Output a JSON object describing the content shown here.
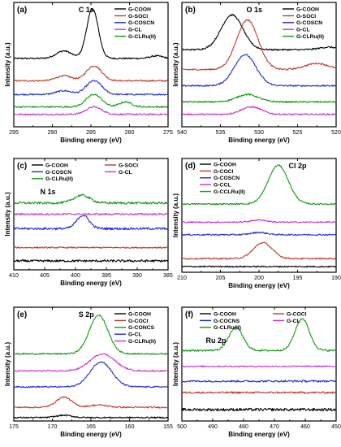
{
  "chart_data": [
    {
      "type": "line",
      "panel_label": "(a)",
      "title": "C 1s",
      "xlabel": "Binding energy (eV)",
      "ylabel": "Intensity (a.u.)",
      "xlim": [
        295,
        275
      ],
      "x_ticks": [
        "295",
        "290",
        "285",
        "280",
        "275"
      ],
      "legend": [
        {
          "name": "G-COOH",
          "color": "#000000"
        },
        {
          "name": "G-SOCl",
          "color": "#c0392b"
        },
        {
          "name": "G-COSCN",
          "color": "#1f2bd6"
        },
        {
          "name": "G-CL",
          "color": "#cc33cc"
        },
        {
          "name": "G-CLRu(II)",
          "color": "#119911"
        }
      ],
      "series": [
        {
          "name": "G-COOH",
          "color": "#000000",
          "baseline": 0.55,
          "noise": 0.006,
          "peaks": [
            [
              284.8,
              0.4,
              0.75
            ],
            [
              288.5,
              0.06,
              1.0
            ],
            [
              276.5,
              0.02,
              0.8
            ]
          ]
        },
        {
          "name": "G-SOCl",
          "color": "#c0392b",
          "baseline": 0.37,
          "noise": 0.006,
          "peaks": [
            [
              284.6,
              0.12,
              1.0
            ],
            [
              288.5,
              0.04,
              1.0
            ]
          ]
        },
        {
          "name": "G-COSCN",
          "color": "#1f2bd6",
          "baseline": 0.26,
          "noise": 0.006,
          "peaks": [
            [
              284.6,
              0.11,
              1.0
            ],
            [
              288.5,
              0.03,
              1.0
            ]
          ]
        },
        {
          "name": "G-CL",
          "color": "#cc33cc",
          "baseline": 0.1,
          "noise": 0.006,
          "peaks": [
            [
              284.6,
              0.06,
              1.0
            ]
          ]
        },
        {
          "name": "G-CLRu(II)",
          "color": "#119911",
          "baseline": 0.16,
          "noise": 0.006,
          "peaks": [
            [
              284.6,
              0.1,
              1.0
            ],
            [
              280.5,
              0.04,
              0.8
            ]
          ]
        }
      ]
    },
    {
      "type": "line",
      "panel_label": "(b)",
      "title": "O 1s",
      "xlabel": "Binding energy (eV)",
      "ylabel": "Intensity (a.u.)",
      "xlim": [
        540,
        520
      ],
      "x_ticks": [
        "540",
        "535",
        "530",
        "525",
        "520"
      ],
      "legend": [
        {
          "name": "G-COOH",
          "color": "#000000"
        },
        {
          "name": "G-SOCl",
          "color": "#c0392b"
        },
        {
          "name": "G-COSCN",
          "color": "#1f2bd6"
        },
        {
          "name": "G-CL",
          "color": "#cc33cc"
        },
        {
          "name": "G-CLRu(II)",
          "color": "#119911"
        }
      ],
      "series": [
        {
          "name": "G-COOH",
          "color": "#000000",
          "baseline": 0.62,
          "noise": 0.006,
          "peaks": [
            [
              533.5,
              0.28,
              1.4
            ],
            [
              521.0,
              0.02,
              1.2
            ]
          ]
        },
        {
          "name": "G-SOCl",
          "color": "#c0392b",
          "baseline": 0.46,
          "noise": 0.006,
          "peaks": [
            [
              531.5,
              0.4,
              1.4
            ],
            [
              522.5,
              0.05,
              1.5
            ]
          ]
        },
        {
          "name": "G-COSCN",
          "color": "#1f2bd6",
          "baseline": 0.33,
          "noise": 0.006,
          "peaks": [
            [
              531.8,
              0.25,
              1.4
            ]
          ]
        },
        {
          "name": "G-CL",
          "color": "#cc33cc",
          "baseline": 0.1,
          "noise": 0.006,
          "peaks": [
            [
              531.0,
              0.06,
              1.3
            ]
          ]
        },
        {
          "name": "G-CLRu(II)",
          "color": "#119911",
          "baseline": 0.2,
          "noise": 0.006,
          "peaks": [
            [
              531.5,
              0.06,
              1.4
            ]
          ]
        }
      ]
    },
    {
      "type": "line",
      "panel_label": "(c)",
      "title": "N 1s",
      "xlabel": "Binding energy (eV)",
      "ylabel": "Intensity (a.u.)",
      "xlim": [
        410,
        385
      ],
      "x_ticks": [
        "410",
        "405",
        "400",
        "395",
        "390",
        "385"
      ],
      "legend": [
        {
          "name": "G-COOH",
          "color": "#000000"
        },
        {
          "name": "G-SOCl",
          "color": "#c0392b"
        },
        {
          "name": "G-COSCN",
          "color": "#1f2bd6"
        },
        {
          "name": "G-CL",
          "color": "#cc33cc"
        },
        {
          "name": "G-CLRu(II)",
          "color": "#119911"
        }
      ],
      "series": [
        {
          "name": "G-COOH",
          "color": "#000000",
          "baseline": 0.08,
          "noise": 0.01,
          "peaks": []
        },
        {
          "name": "G-SOCl",
          "color": "#c0392b",
          "baseline": 0.2,
          "noise": 0.006,
          "peaks": []
        },
        {
          "name": "G-COSCN",
          "color": "#1f2bd6",
          "baseline": 0.37,
          "noise": 0.01,
          "peaks": [
            [
              398.8,
              0.12,
              1.0
            ]
          ]
        },
        {
          "name": "G-CL",
          "color": "#cc33cc",
          "baseline": 0.5,
          "noise": 0.008,
          "peaks": []
        },
        {
          "name": "G-CLRu(II)",
          "color": "#119911",
          "baseline": 0.6,
          "noise": 0.01,
          "peaks": [
            [
              399.0,
              0.07,
              1.3
            ]
          ]
        }
      ]
    },
    {
      "type": "line",
      "panel_label": "(d)",
      "title": "Cl 2p",
      "xlabel": "Binding energy (eV)",
      "ylabel": "Intensity (a.u.)",
      "xlim": [
        210,
        190
      ],
      "x_ticks": [
        "210",
        "205",
        "200",
        "195",
        "190"
      ],
      "legend": [
        {
          "name": "G-COOH",
          "color": "#000000"
        },
        {
          "name": "G-COCl",
          "color": "#c0392b"
        },
        {
          "name": "G-COSCN",
          "color": "#1f2bd6"
        },
        {
          "name": "G-CCL",
          "color": "#cc33cc"
        },
        {
          "name": "G-CCLRu(II)",
          "color": "#119911"
        }
      ],
      "series": [
        {
          "name": "G-COOH",
          "color": "#000000",
          "baseline": 0.05,
          "noise": 0.006,
          "peaks": []
        },
        {
          "name": "G-COCl",
          "color": "#c0392b",
          "baseline": 0.12,
          "noise": 0.006,
          "peaks": [
            [
              199.5,
              0.14,
              1.2
            ]
          ]
        },
        {
          "name": "G-COSCN",
          "color": "#1f2bd6",
          "baseline": 0.33,
          "noise": 0.006,
          "peaks": [
            [
              200.0,
              0.02,
              1.0
            ]
          ]
        },
        {
          "name": "G-CCL",
          "color": "#cc33cc",
          "baseline": 0.44,
          "noise": 0.006,
          "peaks": [
            [
              200.0,
              0.02,
              1.0
            ]
          ]
        },
        {
          "name": "G-CCLRu(II)",
          "color": "#119911",
          "baseline": 0.6,
          "noise": 0.006,
          "peaks": [
            [
              197.5,
              0.34,
              1.3
            ]
          ]
        }
      ]
    },
    {
      "type": "line",
      "panel_label": "(e)",
      "title": "S 2p",
      "xlabel": "Binding energy (eV)",
      "ylabel": "Intensity (a.u.)",
      "xlim": [
        175,
        155
      ],
      "x_ticks": [
        "175",
        "170",
        "165",
        "160",
        "155"
      ],
      "legend": [
        {
          "name": "G-COOH",
          "color": "#000000"
        },
        {
          "name": "G-COCl",
          "color": "#c0392b"
        },
        {
          "name": "G-CONCS",
          "color": "#119911"
        },
        {
          "name": "G-CL",
          "color": "#1f2bd6"
        },
        {
          "name": "G-CLRu(II)",
          "color": "#cc33cc"
        }
      ],
      "series": [
        {
          "name": "G-COOH",
          "color": "#000000",
          "baseline": 0.03,
          "noise": 0.006,
          "peaks": [
            [
              168.5,
              0.02,
              1.0
            ]
          ]
        },
        {
          "name": "G-COCl",
          "color": "#c0392b",
          "baseline": 0.12,
          "noise": 0.006,
          "peaks": [
            [
              168.5,
              0.09,
              1.0
            ],
            [
              164.0,
              0.02,
              1.2
            ]
          ]
        },
        {
          "name": "G-CONCS",
          "color": "#119911",
          "baseline": 0.59,
          "noise": 0.006,
          "peaks": [
            [
              164.0,
              0.34,
              1.2
            ]
          ]
        },
        {
          "name": "G-CL",
          "color": "#1f2bd6",
          "baseline": 0.3,
          "noise": 0.006,
          "peaks": [
            [
              163.7,
              0.22,
              1.4
            ]
          ]
        },
        {
          "name": "G-CLRu(II)",
          "color": "#cc33cc",
          "baseline": 0.44,
          "noise": 0.006,
          "peaks": [
            [
              163.5,
              0.15,
              1.6
            ]
          ]
        }
      ]
    },
    {
      "type": "line",
      "panel_label": "(f)",
      "title": "Ru 2p",
      "xlabel": "Binding energy (eV)",
      "ylabel": "Intensity (a.u.)",
      "xlim": [
        500,
        450
      ],
      "x_ticks": [
        "500",
        "490",
        "480",
        "470",
        "460",
        "450"
      ],
      "legend": [
        {
          "name": "G-COOH",
          "color": "#000000"
        },
        {
          "name": "G-COCl",
          "color": "#c0392b"
        },
        {
          "name": "G-COCNS",
          "color": "#1f2bd6"
        },
        {
          "name": "G-CL",
          "color": "#cc33cc"
        },
        {
          "name": "G-CLRu(II)",
          "color": "#119911"
        }
      ],
      "series": [
        {
          "name": "G-COOH",
          "color": "#000000",
          "baseline": 0.1,
          "noise": 0.012,
          "peaks": []
        },
        {
          "name": "G-COCl",
          "color": "#c0392b",
          "baseline": 0.25,
          "noise": 0.008,
          "peaks": []
        },
        {
          "name": "G-COCNS",
          "color": "#1f2bd6",
          "baseline": 0.35,
          "noise": 0.008,
          "peaks": []
        },
        {
          "name": "G-CL",
          "color": "#cc33cc",
          "baseline": 0.48,
          "noise": 0.006,
          "peaks": []
        },
        {
          "name": "G-CLRu(II)",
          "color": "#119911",
          "baseline": 0.62,
          "noise": 0.008,
          "peaks": [
            [
              482.5,
              0.2,
              2.3
            ],
            [
              461.0,
              0.28,
              2.3
            ]
          ]
        }
      ]
    }
  ]
}
